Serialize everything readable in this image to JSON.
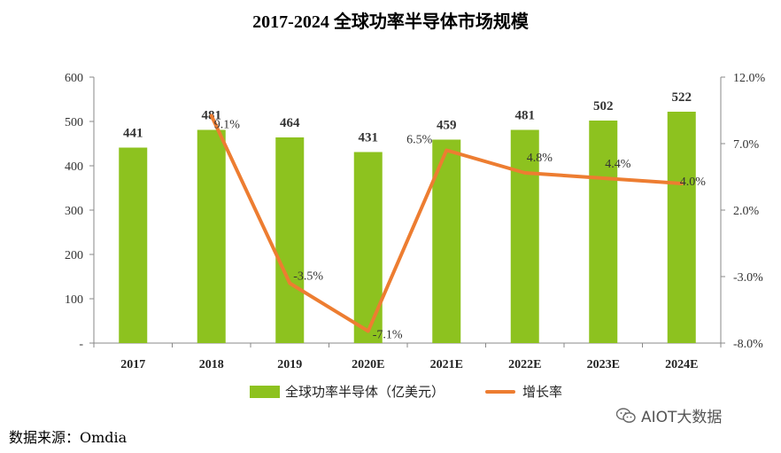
{
  "chart_data": {
    "type": "bar+line",
    "title": "2017-2024 全球功率半导体市场规模",
    "categories": [
      "2017",
      "2018",
      "2019",
      "2020E",
      "2021E",
      "2022E",
      "2023E",
      "2024E"
    ],
    "series": [
      {
        "name": "全球功率半导体（亿美元）",
        "type": "bar",
        "axis": "left",
        "values": [
          441,
          481,
          464,
          431,
          459,
          481,
          502,
          522
        ],
        "labels": [
          "441",
          "481",
          "464",
          "431",
          "459",
          "481",
          "502",
          "522"
        ],
        "color": "#8dc21f"
      },
      {
        "name": "增长率",
        "type": "line",
        "axis": "right",
        "values": [
          null,
          9.1,
          -3.5,
          -7.1,
          6.5,
          4.8,
          4.4,
          4.0
        ],
        "labels": [
          "",
          "9.1%",
          "-3.5%",
          "-7.1%",
          "6.5%",
          "4.8%",
          "4.4%",
          "4.0%"
        ],
        "color": "#ed7d31"
      }
    ],
    "y_left": {
      "min": 0,
      "max": 600,
      "ticks": [
        0,
        100,
        200,
        300,
        400,
        500,
        600
      ],
      "tick_labels": [
        "-",
        "100",
        "200",
        "300",
        "400",
        "500",
        "600"
      ]
    },
    "y_right": {
      "min": -8,
      "max": 12,
      "ticks": [
        -8,
        -3,
        2,
        7,
        12
      ],
      "tick_labels": [
        "-8.0%",
        "-3.0%",
        "2.0%",
        "7.0%",
        "12.0%"
      ]
    },
    "grid": false,
    "legend_position": "bottom"
  },
  "legend": {
    "bar": "全球功率半导体（亿美元）",
    "line": "增长率"
  },
  "source": "数据来源：Omdia",
  "watermark": "AIOT大数据"
}
